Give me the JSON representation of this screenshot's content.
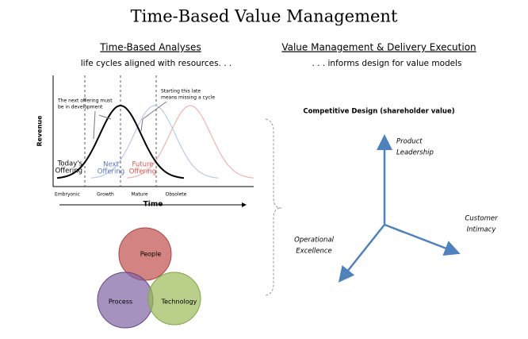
{
  "title": "Time-Based Value Management",
  "left": {
    "heading": "Time-Based Analyses",
    "subheading": "life cycles aligned with resources. . .",
    "lifecycle": {
      "y_axis": "Revenue",
      "x_axis": "Time",
      "phases": [
        "Embryonic",
        "Growth",
        "Mature",
        "Obsolete"
      ],
      "annotations": [
        [
          "The next offering must",
          "be in development"
        ],
        [
          "Starting this late",
          "means missing a cycle"
        ]
      ],
      "curves": [
        [
          "Today's",
          "Offering"
        ],
        [
          "Next",
          "Offering"
        ],
        [
          "Future",
          "Offering"
        ]
      ]
    },
    "venn": [
      "People",
      "Process",
      "Technology"
    ]
  },
  "right": {
    "heading": "Value Management & Delivery Execution",
    "subheading": ". . . informs design for value models",
    "diagram_title": "Competitive Design (shareholder value)",
    "axes": [
      [
        "Product",
        "Leadership"
      ],
      [
        "Customer",
        "Intimacy"
      ],
      [
        "Operational",
        "Excellence"
      ]
    ]
  }
}
